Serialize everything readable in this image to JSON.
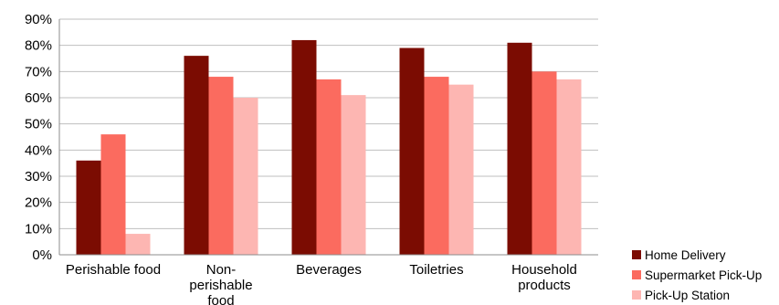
{
  "chart_data": {
    "type": "bar",
    "categories": [
      [
        "Perishable food"
      ],
      [
        "Non-",
        "perishable",
        "food"
      ],
      [
        "Beverages"
      ],
      [
        "Toiletries"
      ],
      [
        "Household",
        "products"
      ]
    ],
    "series": [
      {
        "name": "Home Delivery",
        "color": "#7b0c02",
        "values": [
          36,
          76,
          82,
          79,
          81
        ]
      },
      {
        "name": "Supermarket Pick-Up",
        "color": "#fb6b5f",
        "values": [
          46,
          68,
          67,
          68,
          70
        ]
      },
      {
        "name": "Pick-Up Station",
        "color": "#fdb6b2",
        "values": [
          8,
          60,
          61,
          65,
          67
        ]
      }
    ],
    "ylim": [
      0,
      90
    ],
    "yticks": [
      "0%",
      "10%",
      "20%",
      "30%",
      "40%",
      "50%",
      "60%",
      "70%",
      "80%",
      "90%"
    ],
    "grid": true,
    "legend": "bottom-right"
  }
}
